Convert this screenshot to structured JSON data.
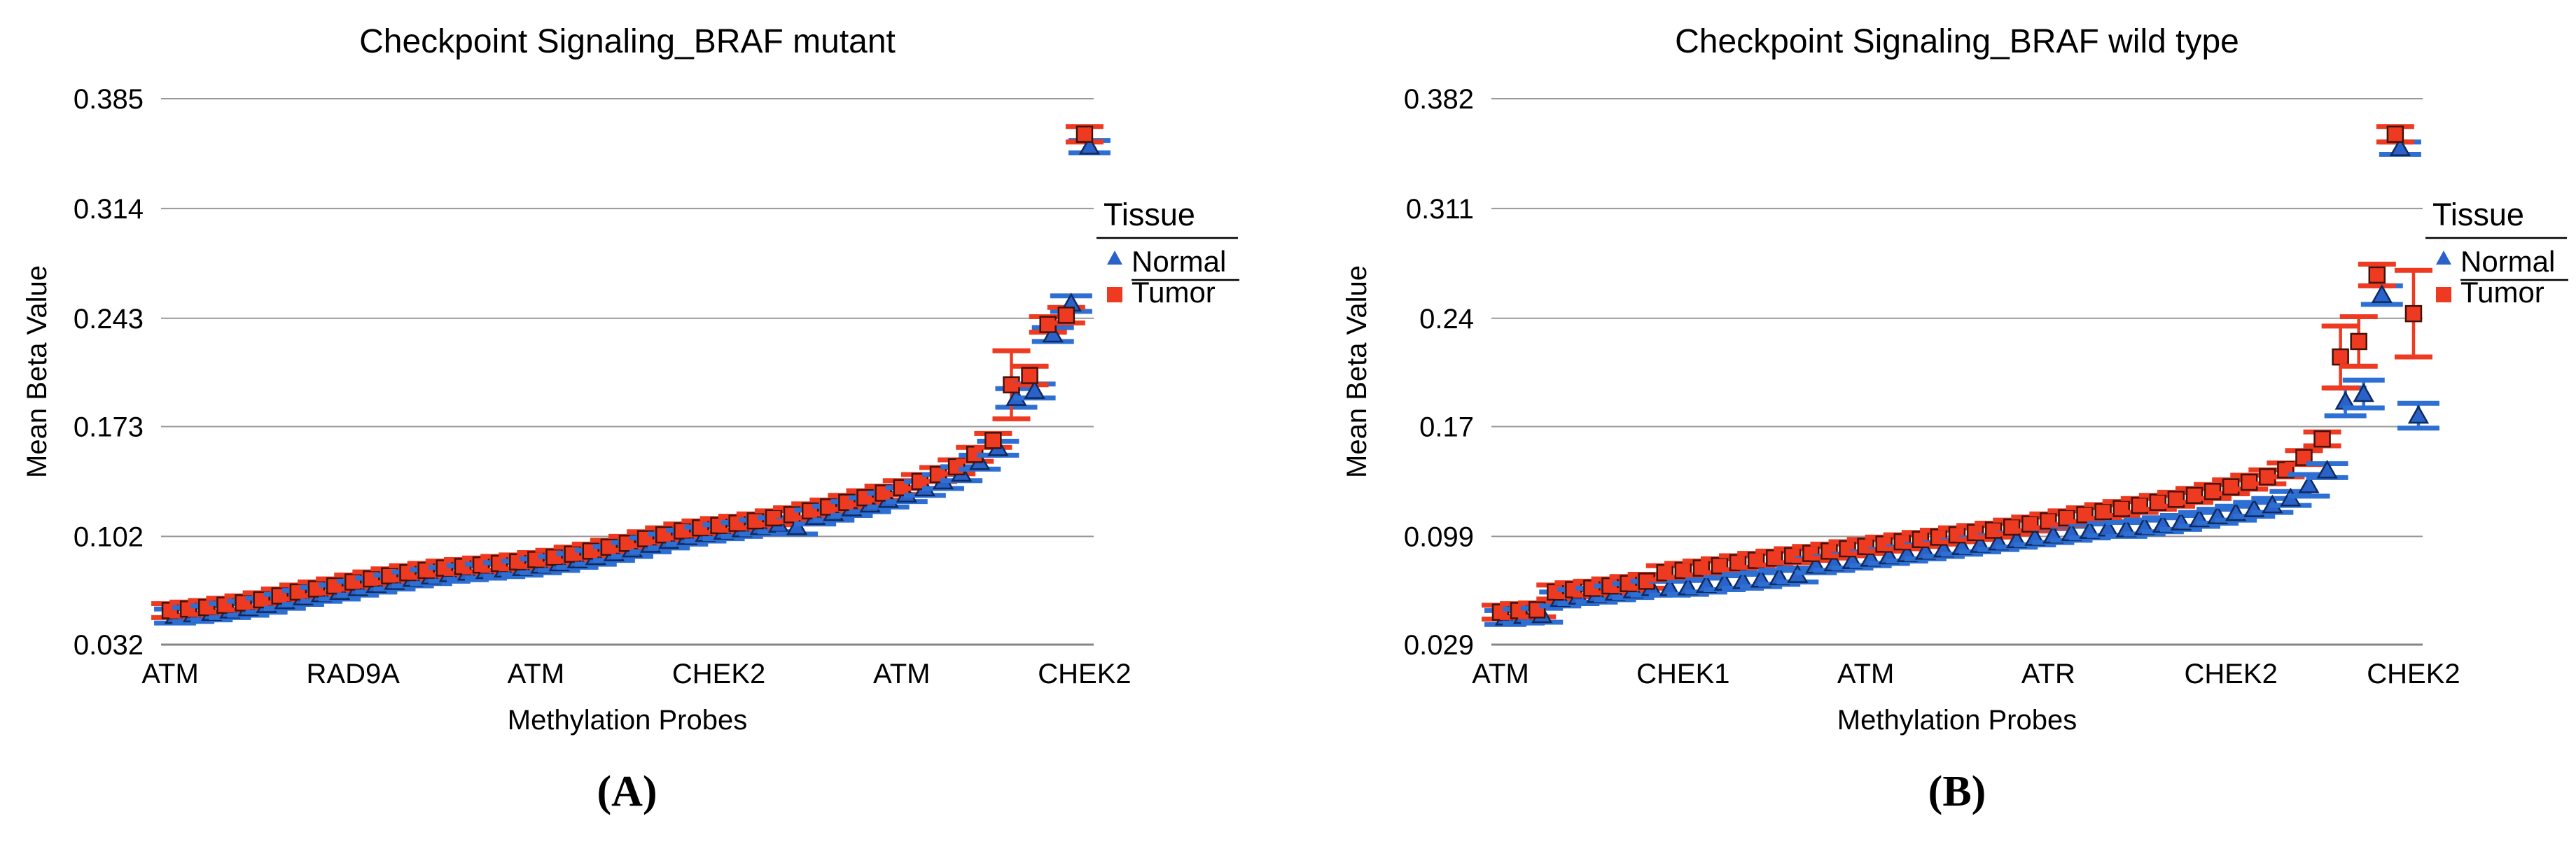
{
  "page": {
    "background": "#ffffff"
  },
  "figure": {
    "panels": [
      {
        "caption": "(A)"
      },
      {
        "caption": "(B)"
      }
    ]
  },
  "colors": {
    "tumor_fill": "#ee3a21",
    "tumor_stroke": "#40130a",
    "tumor_errbar": "#ee3a21",
    "normal_fill": "#2a62c9",
    "normal_stroke": "#0d2a5c",
    "normal_errbar": "#2e6fd3",
    "gridline": "#999999",
    "axis_line": "#858585",
    "text": "#000000"
  },
  "chart_data": [
    {
      "type": "scatter",
      "title": "Checkpoint Signaling_BRAF mutant",
      "xlabel": "Methylation Probes",
      "ylabel": "Mean Beta Value",
      "caption": "(A)",
      "grid": true,
      "ylim": [
        0.032,
        0.385
      ],
      "y_tick_values": [
        0.385,
        0.314,
        0.243,
        0.173,
        0.102,
        0.032
      ],
      "y_tick_labels": [
        "0.385",
        "0.314",
        "0.243",
        "0.173",
        "0.102",
        "0.032"
      ],
      "x_tick_labels": [
        "ATM",
        "RAD9A",
        "ATM",
        "CHEK2",
        "ATM",
        "CHEK2"
      ],
      "x_tick_indices": [
        0,
        10,
        20,
        30,
        40,
        50
      ],
      "n_points": 51,
      "legend": {
        "title": "Tissue",
        "position": "right",
        "entries": [
          {
            "label": "Normal",
            "marker": "triangle",
            "color": "#2a62c9"
          },
          {
            "label": "Tumor",
            "marker": "square",
            "color": "#ee3a21"
          }
        ]
      },
      "series": [
        {
          "name": "Normal",
          "marker": "triangle",
          "err_default": 0.0045,
          "err_overrides": {
            "46": 0.006,
            "49": 0.005,
            "50": 0.004
          },
          "values": [
            0.0505,
            0.0515,
            0.0525,
            0.054,
            0.0555,
            0.0575,
            0.06,
            0.0625,
            0.0645,
            0.066,
            0.0685,
            0.0705,
            0.0725,
            0.0745,
            0.076,
            0.0775,
            0.0785,
            0.0795,
            0.0805,
            0.0815,
            0.083,
            0.0845,
            0.0865,
            0.0885,
            0.091,
            0.0935,
            0.0965,
            0.099,
            0.1015,
            0.1035,
            0.105,
            0.1065,
            0.108,
            0.1095,
            0.108,
            0.1145,
            0.117,
            0.12,
            0.1225,
            0.1255,
            0.129,
            0.133,
            0.1375,
            0.1425,
            0.15,
            0.159,
            0.1915,
            0.196,
            0.2325,
            0.2525,
            0.354
          ]
        },
        {
          "name": "Tumor",
          "marker": "square",
          "err_default": 0.0045,
          "err_overrides": {
            "46": 0.022,
            "47": 0.006,
            "48": 0.005,
            "49": 0.005,
            "50": 0.005
          },
          "values": [
            0.054,
            0.055,
            0.056,
            0.0575,
            0.059,
            0.061,
            0.0635,
            0.066,
            0.068,
            0.07,
            0.0725,
            0.0745,
            0.0765,
            0.0785,
            0.08,
            0.0815,
            0.0825,
            0.0835,
            0.0845,
            0.0855,
            0.087,
            0.0885,
            0.0905,
            0.0925,
            0.095,
            0.0975,
            0.1005,
            0.103,
            0.1055,
            0.1075,
            0.109,
            0.1105,
            0.112,
            0.114,
            0.116,
            0.1185,
            0.121,
            0.124,
            0.127,
            0.13,
            0.1335,
            0.1375,
            0.142,
            0.147,
            0.155,
            0.164,
            0.2,
            0.206,
            0.239,
            0.245,
            0.362
          ]
        }
      ]
    },
    {
      "type": "scatter",
      "title": "Checkpoint Signaling_BRAF wild type",
      "xlabel": "Methylation Probes",
      "ylabel": "Mean Beta Value",
      "caption": "(B)",
      "grid": true,
      "ylim": [
        0.029,
        0.382
      ],
      "y_tick_values": [
        0.382,
        0.311,
        0.24,
        0.17,
        0.099,
        0.029
      ],
      "y_tick_labels": [
        "0.382",
        "0.311",
        "0.24",
        "0.17",
        "0.099",
        "0.029"
      ],
      "x_tick_labels": [
        "ATM",
        "CHEK1",
        "ATM",
        "ATR",
        "CHEK2",
        "CHEK2"
      ],
      "x_tick_indices": [
        0,
        10,
        20,
        30,
        40,
        50
      ],
      "n_points": 51,
      "legend": {
        "title": "Tissue",
        "position": "right",
        "entries": [
          {
            "label": "Normal",
            "marker": "triangle",
            "color": "#2a62c9"
          },
          {
            "label": "Tumor",
            "marker": "square",
            "color": "#ee3a21"
          }
        ]
      },
      "series": [
        {
          "name": "Normal",
          "marker": "triangle",
          "err_default": 0.0045,
          "err_overrides": {
            "44": 0.007,
            "46": 0.009,
            "47": 0.009,
            "48": 0.006,
            "49": 0.004,
            "50": 0.008
          },
          "values": [
            0.0465,
            0.0475,
            0.048,
            0.0585,
            0.06,
            0.061,
            0.0625,
            0.064,
            0.0655,
            0.0655,
            0.066,
            0.0675,
            0.069,
            0.07,
            0.071,
            0.0725,
            0.074,
            0.08,
            0.0815,
            0.083,
            0.0845,
            0.086,
            0.0875,
            0.089,
            0.0905,
            0.092,
            0.0935,
            0.095,
            0.0965,
            0.098,
            0.0995,
            0.101,
            0.1025,
            0.104,
            0.1035,
            0.105,
            0.1065,
            0.108,
            0.11,
            0.112,
            0.114,
            0.1165,
            0.119,
            0.1235,
            0.132,
            0.1415,
            0.186,
            0.191,
            0.255,
            0.35,
            0.177
          ]
        },
        {
          "name": "Tumor",
          "marker": "square",
          "err_default": 0.0045,
          "err_overrides": {
            "46": 0.02,
            "47": 0.016,
            "48": 0.007,
            "49": 0.005,
            "50": 0.028
          },
          "values": [
            0.05,
            0.051,
            0.0515,
            0.063,
            0.0645,
            0.0655,
            0.067,
            0.0685,
            0.07,
            0.0755,
            0.077,
            0.0785,
            0.08,
            0.082,
            0.0835,
            0.085,
            0.0865,
            0.088,
            0.0895,
            0.091,
            0.0925,
            0.094,
            0.0955,
            0.097,
            0.0985,
            0.1,
            0.1015,
            0.103,
            0.105,
            0.107,
            0.109,
            0.111,
            0.113,
            0.115,
            0.117,
            0.119,
            0.121,
            0.123,
            0.1255,
            0.128,
            0.131,
            0.134,
            0.1375,
            0.142,
            0.15,
            0.162,
            0.215,
            0.225,
            0.268,
            0.359,
            0.243
          ]
        }
      ]
    }
  ]
}
